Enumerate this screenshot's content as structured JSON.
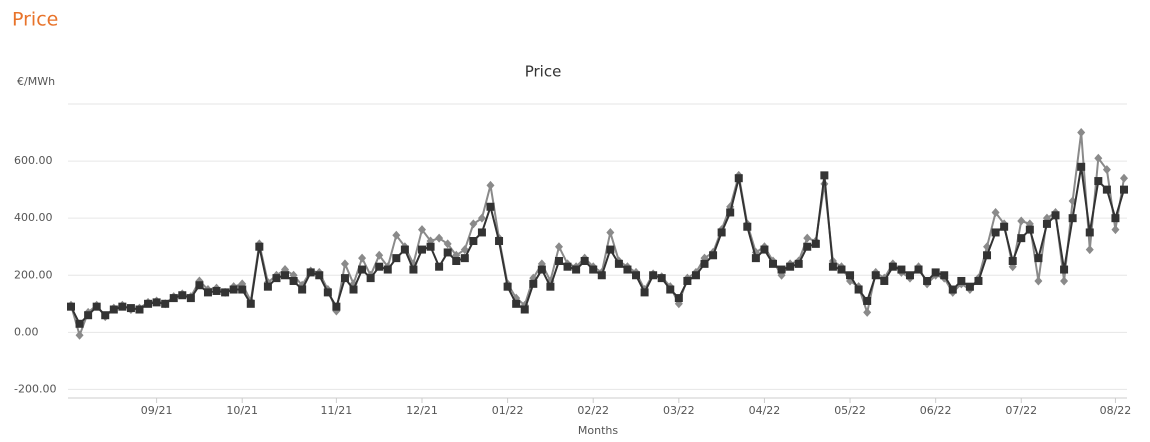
{
  "page_title": "Price",
  "chart_data": {
    "type": "line",
    "title": "Price",
    "y_label": "€/MWh",
    "x_label": "Months",
    "categories": [
      null,
      null,
      null,
      null,
      null,
      null,
      null,
      null,
      null,
      null,
      "09/21",
      null,
      null,
      null,
      null,
      null,
      null,
      null,
      null,
      null,
      "10/21",
      null,
      null,
      null,
      null,
      null,
      null,
      null,
      null,
      null,
      null,
      "11/21",
      null,
      null,
      null,
      null,
      null,
      null,
      null,
      null,
      null,
      "12/21",
      null,
      null,
      null,
      null,
      null,
      null,
      null,
      null,
      null,
      "01/22",
      null,
      null,
      null,
      null,
      null,
      null,
      null,
      null,
      null,
      "02/22",
      null,
      null,
      null,
      null,
      null,
      null,
      null,
      null,
      null,
      "03/22",
      null,
      null,
      null,
      null,
      null,
      null,
      null,
      null,
      null,
      "04/22",
      null,
      null,
      null,
      null,
      null,
      null,
      null,
      null,
      null,
      "05/22",
      null,
      null,
      null,
      null,
      null,
      null,
      null,
      null,
      null,
      "06/22",
      null,
      null,
      null,
      null,
      null,
      null,
      null,
      null,
      null,
      "07/22",
      null,
      null,
      null,
      null,
      null,
      null,
      null,
      null,
      null,
      null,
      "08/22",
      null
    ],
    "series": [
      {
        "color": "#8a8a8a",
        "values": [
          95,
          -10,
          70,
          95,
          55,
          85,
          95,
          80,
          85,
          105,
          110,
          100,
          125,
          135,
          125,
          180,
          150,
          155,
          140,
          160,
          170,
          110,
          310,
          175,
          200,
          220,
          200,
          165,
          215,
          210,
          150,
          75,
          240,
          170,
          260,
          200,
          270,
          230,
          340,
          300,
          240,
          360,
          320,
          330,
          310,
          270,
          290,
          380,
          400,
          515,
          330,
          170,
          120,
          95,
          190,
          240,
          180,
          300,
          240,
          230,
          260,
          230,
          210,
          350,
          250,
          230,
          210,
          150,
          205,
          195,
          160,
          100,
          190,
          210,
          260,
          280,
          360,
          440,
          550,
          380,
          280,
          300,
          250,
          200,
          240,
          250,
          330,
          320,
          520,
          250,
          230,
          180,
          160,
          70,
          210,
          190,
          240,
          210,
          190,
          230,
          170,
          200,
          190,
          140,
          170,
          150,
          190,
          300,
          420,
          380,
          230,
          390,
          380,
          180,
          400,
          420,
          180,
          460,
          700,
          290,
          610,
          570,
          360,
          540
        ]
      },
      {
        "color": "#333333",
        "values": [
          90,
          30,
          60,
          90,
          60,
          80,
          90,
          85,
          80,
          100,
          105,
          100,
          120,
          130,
          120,
          165,
          140,
          145,
          140,
          150,
          150,
          100,
          300,
          160,
          190,
          200,
          180,
          150,
          210,
          200,
          140,
          90,
          190,
          150,
          220,
          190,
          230,
          220,
          260,
          290,
          220,
          290,
          300,
          230,
          280,
          250,
          260,
          320,
          350,
          440,
          320,
          160,
          100,
          80,
          170,
          220,
          160,
          250,
          230,
          220,
          250,
          220,
          200,
          290,
          240,
          220,
          200,
          140,
          200,
          190,
          150,
          120,
          180,
          200,
          240,
          270,
          350,
          420,
          540,
          370,
          260,
          290,
          240,
          220,
          230,
          240,
          300,
          310,
          550,
          230,
          220,
          200,
          150,
          110,
          200,
          180,
          230,
          220,
          200,
          220,
          180,
          210,
          200,
          150,
          180,
          160,
          180,
          270,
          350,
          370,
          250,
          330,
          360,
          260,
          380,
          410,
          220,
          400,
          580,
          350,
          530,
          500,
          400,
          500
        ]
      }
    ],
    "ylim": [
      -230,
      800
    ],
    "yticks": [
      {
        "value": -200,
        "label": "-200.00"
      },
      {
        "value": 0,
        "label": "0.00"
      },
      {
        "value": 200,
        "label": "200.00"
      },
      {
        "value": 400,
        "label": "400.00"
      },
      {
        "value": 600,
        "label": "600.00"
      }
    ],
    "grid": true
  }
}
